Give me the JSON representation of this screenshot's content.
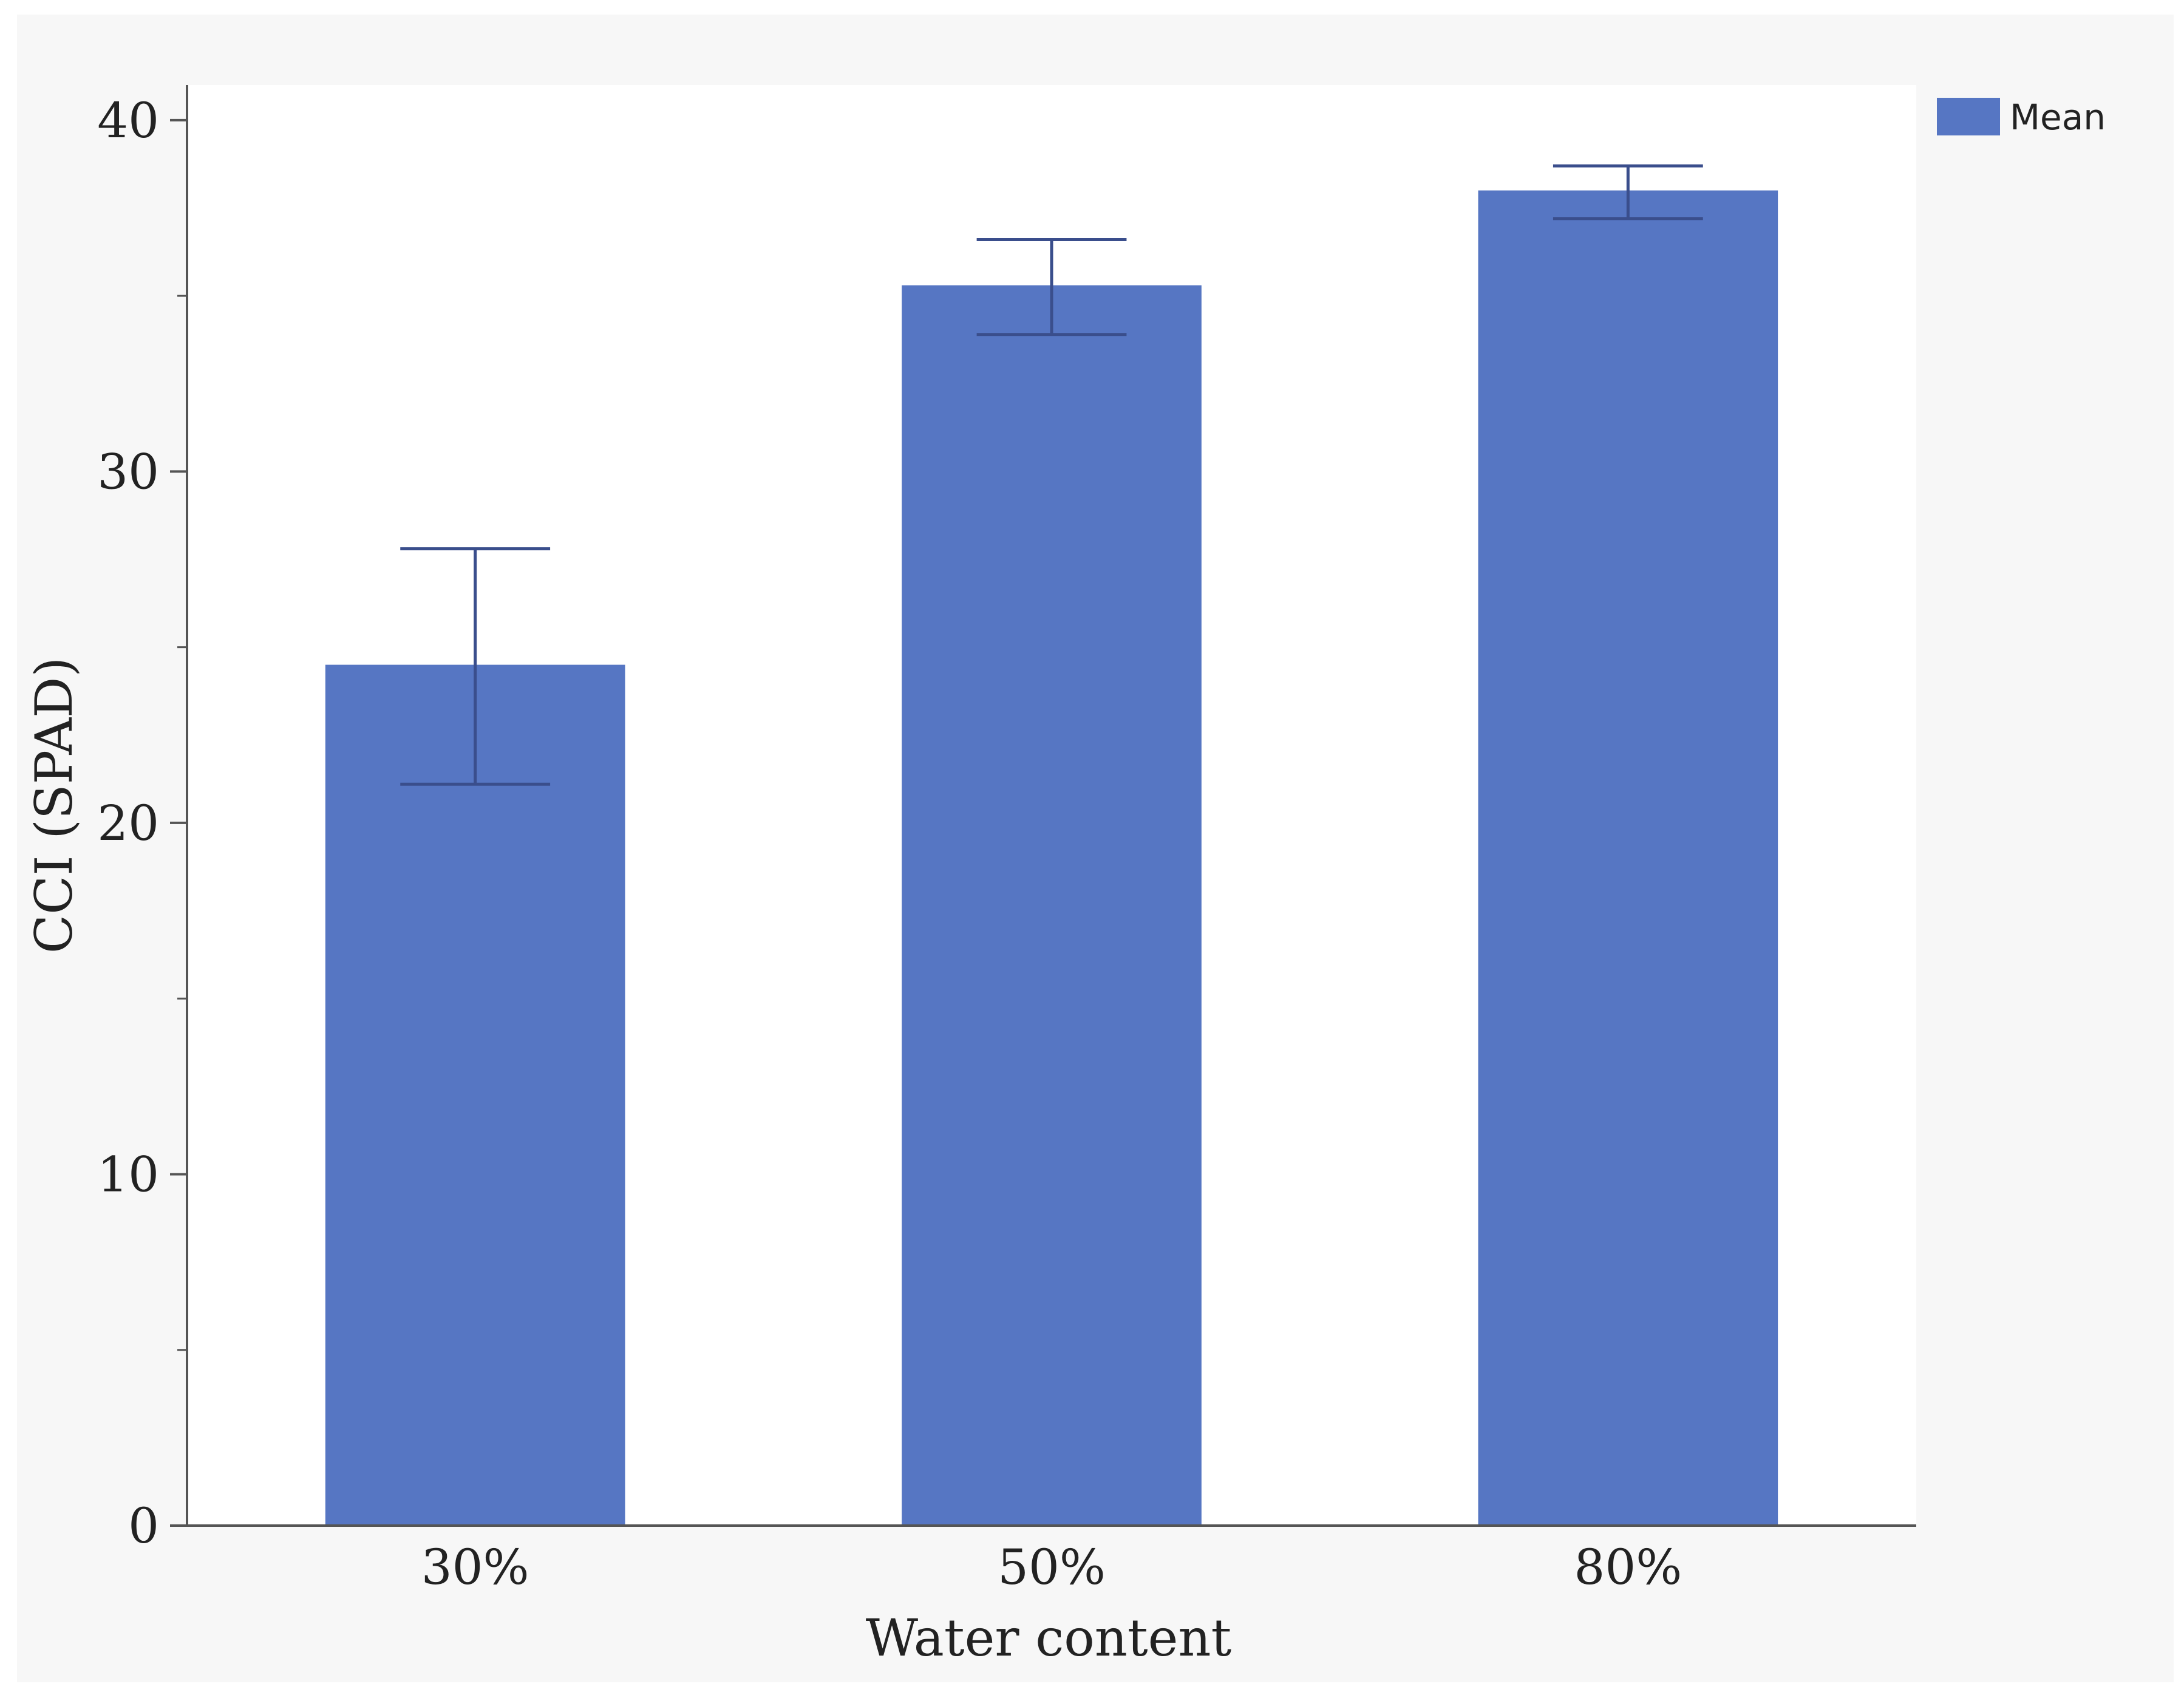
{
  "chart_data": {
    "type": "bar",
    "categories": [
      "30%",
      "50%",
      "80%"
    ],
    "series": [
      {
        "name": "Mean",
        "values": [
          24.5,
          35.3,
          38.0
        ],
        "error_low": [
          21.1,
          33.9,
          37.2
        ],
        "error_high": [
          27.8,
          36.6,
          38.7
        ]
      }
    ],
    "xlabel": "Water content",
    "ylabel": "CCI (SPAD)",
    "ylim": [
      0,
      41
    ],
    "yticks": [
      "0",
      "10",
      "20",
      "30",
      "40"
    ],
    "ytick_values": [
      0,
      10,
      20,
      30,
      40
    ],
    "minor_ytick_step": 5,
    "grid": false,
    "legend_position": "top-right",
    "colors": {
      "bar": "#5676C3",
      "error_bar": "#3A4E8C",
      "axis": "#555555",
      "plot_background": "#FFFFFF",
      "figure_background": "#F7F7F7"
    }
  }
}
